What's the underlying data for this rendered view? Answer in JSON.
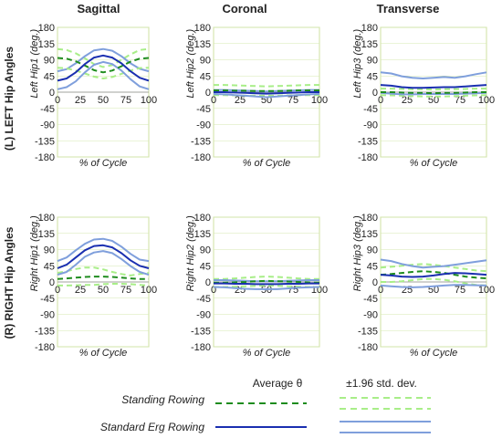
{
  "figure": {
    "column_titles": [
      "Sagittal",
      "Coronal",
      "Transverse"
    ],
    "row_titles": [
      "(L) LEFT Hip Angles",
      "(R) RIGHT Hip Angles"
    ]
  },
  "legend": {
    "average_header": "Average θ",
    "std_header": "±1.96 std. dev.",
    "entries": [
      {
        "label": "Standing Rowing",
        "series": "Standing Rowing"
      },
      {
        "label": "Standard Erg Rowing",
        "series": "Standard Erg Rowing"
      }
    ]
  },
  "colors": {
    "standing_mean": "#1e8c1e",
    "standing_band": "#a8ee88",
    "erg_mean": "#1a2fb0",
    "erg_band": "#7f9fdc",
    "plot_border": "#cfe0a0",
    "grid": "#d6e8b0"
  },
  "chart_data": [
    {
      "type": "line",
      "title": "Sagittal",
      "row": "(L) LEFT Hip Angles",
      "xlabel": "% of Cycle",
      "ylabel": "Left Hip1 (deg.)",
      "xlim": [
        0,
        100
      ],
      "ylim": [
        -180,
        180
      ],
      "xticks": [
        0,
        25,
        50,
        75,
        100
      ],
      "yticks": [
        180,
        135,
        90,
        45,
        0,
        -45,
        -90,
        -135,
        -180
      ],
      "x": [
        0,
        10,
        20,
        30,
        40,
        50,
        60,
        70,
        80,
        90,
        100
      ],
      "series": [
        {
          "name": "Standing Rowing",
          "kind": "mean",
          "values": [
            95,
            93,
            86,
            74,
            61,
            55,
            60,
            72,
            85,
            93,
            95
          ]
        },
        {
          "name": "Standing Rowing",
          "kind": "upper",
          "values": [
            120,
            117,
            108,
            94,
            78,
            70,
            75,
            90,
            105,
            117,
            120
          ]
        },
        {
          "name": "Standing Rowing",
          "kind": "lower",
          "values": [
            68,
            66,
            60,
            52,
            43,
            38,
            42,
            51,
            60,
            67,
            68
          ]
        },
        {
          "name": "Standard Erg Rowing",
          "kind": "mean",
          "values": [
            32,
            38,
            55,
            78,
            96,
            102,
            96,
            80,
            58,
            40,
            32
          ]
        },
        {
          "name": "Standard Erg Rowing",
          "kind": "upper",
          "values": [
            58,
            64,
            80,
            100,
            116,
            120,
            115,
            100,
            80,
            65,
            58
          ]
        },
        {
          "name": "Standard Erg Rowing",
          "kind": "lower",
          "values": [
            8,
            14,
            30,
            55,
            76,
            84,
            78,
            60,
            36,
            16,
            8
          ]
        }
      ]
    },
    {
      "type": "line",
      "title": "Coronal",
      "row": "(L) LEFT Hip Angles",
      "xlabel": "% of Cycle",
      "ylabel": "Left Hip2 (deg.)",
      "xlim": [
        0,
        100
      ],
      "ylim": [
        -180,
        180
      ],
      "xticks": [
        0,
        25,
        50,
        75,
        100
      ],
      "yticks": [
        180,
        135,
        90,
        45,
        0,
        -45,
        -90,
        -135,
        -180
      ],
      "x": [
        0,
        10,
        20,
        30,
        40,
        50,
        60,
        70,
        80,
        90,
        100
      ],
      "series": [
        {
          "name": "Standing Rowing",
          "kind": "mean",
          "values": [
            5,
            5,
            4,
            4,
            3,
            3,
            3,
            4,
            5,
            5,
            5
          ]
        },
        {
          "name": "Standing Rowing",
          "kind": "upper",
          "values": [
            20,
            20,
            19,
            18,
            17,
            16,
            17,
            18,
            19,
            20,
            20
          ]
        },
        {
          "name": "Standing Rowing",
          "kind": "lower",
          "values": [
            -8,
            -8,
            -9,
            -10,
            -10,
            -10,
            -10,
            -9,
            -8,
            -8,
            -8
          ]
        },
        {
          "name": "Standard Erg Rowing",
          "kind": "mean",
          "values": [
            0,
            0,
            -1,
            -2,
            -3,
            -4,
            -3,
            -2,
            -1,
            0,
            0
          ]
        },
        {
          "name": "Standard Erg Rowing",
          "kind": "upper",
          "values": [
            6,
            6,
            5,
            4,
            3,
            2,
            3,
            4,
            5,
            6,
            6
          ]
        },
        {
          "name": "Standard Erg Rowing",
          "kind": "lower",
          "values": [
            -5,
            -6,
            -8,
            -10,
            -12,
            -14,
            -12,
            -10,
            -8,
            -6,
            -5
          ]
        }
      ]
    },
    {
      "type": "line",
      "title": "Transverse",
      "row": "(L) LEFT Hip Angles",
      "xlabel": "% of Cycle",
      "ylabel": "Left Hip3 (deg.)",
      "xlim": [
        0,
        100
      ],
      "ylim": [
        -180,
        180
      ],
      "xticks": [
        0,
        25,
        50,
        75,
        100
      ],
      "yticks": [
        180,
        135,
        90,
        45,
        0,
        -45,
        -90,
        -135,
        -180
      ],
      "x": [
        0,
        10,
        20,
        30,
        40,
        50,
        60,
        70,
        80,
        90,
        100
      ],
      "series": [
        {
          "name": "Standing Rowing",
          "kind": "mean",
          "values": [
            0,
            0,
            -1,
            -2,
            -2,
            -3,
            -2,
            -2,
            -1,
            0,
            0
          ]
        },
        {
          "name": "Standing Rowing",
          "kind": "upper",
          "values": [
            10,
            10,
            9,
            8,
            8,
            7,
            8,
            8,
            9,
            10,
            10
          ]
        },
        {
          "name": "Standing Rowing",
          "kind": "lower",
          "values": [
            -8,
            -9,
            -10,
            -11,
            -12,
            -12,
            -12,
            -11,
            -10,
            -9,
            -8
          ]
        },
        {
          "name": "Standard Erg Rowing",
          "kind": "mean",
          "values": [
            20,
            18,
            14,
            12,
            12,
            13,
            14,
            14,
            16,
            18,
            20
          ]
        },
        {
          "name": "Standard Erg Rowing",
          "kind": "upper",
          "values": [
            55,
            52,
            44,
            40,
            38,
            40,
            42,
            40,
            44,
            50,
            55
          ]
        },
        {
          "name": "Standard Erg Rowing",
          "kind": "lower",
          "values": [
            -2,
            -4,
            -6,
            -6,
            -5,
            -5,
            -5,
            -5,
            -4,
            -3,
            -2
          ]
        }
      ]
    },
    {
      "type": "line",
      "title": "Sagittal",
      "row": "(R) RIGHT Hip Angles",
      "xlabel": "% of Cycle",
      "ylabel": "Right Hip1 (deg.)",
      "xlim": [
        0,
        100
      ],
      "ylim": [
        -180,
        180
      ],
      "xticks": [
        0,
        25,
        50,
        75,
        100
      ],
      "yticks": [
        180,
        135,
        90,
        45,
        0,
        -45,
        -90,
        -135,
        -180
      ],
      "x": [
        0,
        10,
        20,
        30,
        40,
        50,
        60,
        70,
        80,
        90,
        100
      ],
      "series": [
        {
          "name": "Standing Rowing",
          "kind": "mean",
          "values": [
            8,
            10,
            12,
            14,
            15,
            15,
            14,
            12,
            10,
            8,
            8
          ]
        },
        {
          "name": "Standing Rowing",
          "kind": "upper",
          "values": [
            25,
            30,
            36,
            40,
            40,
            35,
            28,
            22,
            18,
            22,
            25
          ]
        },
        {
          "name": "Standing Rowing",
          "kind": "lower",
          "values": [
            -10,
            -10,
            -9,
            -8,
            -8,
            -6,
            -5,
            -5,
            -6,
            -8,
            -10
          ]
        },
        {
          "name": "Standard Erg Rowing",
          "kind": "mean",
          "values": [
            38,
            48,
            68,
            88,
            100,
            102,
            96,
            80,
            60,
            45,
            38
          ]
        },
        {
          "name": "Standard Erg Rowing",
          "kind": "upper",
          "values": [
            58,
            68,
            88,
            106,
            118,
            120,
            114,
            98,
            78,
            62,
            58
          ]
        },
        {
          "name": "Standard Erg Rowing",
          "kind": "lower",
          "values": [
            20,
            28,
            48,
            70,
            82,
            86,
            80,
            64,
            44,
            28,
            20
          ]
        }
      ]
    },
    {
      "type": "line",
      "title": "Coronal",
      "row": "(R) RIGHT Hip Angles",
      "xlabel": "% of Cycle",
      "ylabel": "Right Hip2 (deg.)",
      "xlim": [
        0,
        100
      ],
      "ylim": [
        -180,
        180
      ],
      "xticks": [
        0,
        25,
        50,
        75,
        100
      ],
      "yticks": [
        180,
        135,
        90,
        45,
        0,
        -45,
        -90,
        -135,
        -180
      ],
      "x": [
        0,
        10,
        20,
        30,
        40,
        50,
        60,
        70,
        80,
        90,
        100
      ],
      "series": [
        {
          "name": "Standing Rowing",
          "kind": "mean",
          "values": [
            -2,
            -2,
            -1,
            0,
            2,
            3,
            2,
            1,
            0,
            -1,
            -2
          ]
        },
        {
          "name": "Standing Rowing",
          "kind": "upper",
          "values": [
            8,
            8,
            10,
            12,
            14,
            15,
            14,
            12,
            10,
            8,
            8
          ]
        },
        {
          "name": "Standing Rowing",
          "kind": "lower",
          "values": [
            -14,
            -14,
            -13,
            -12,
            -11,
            -10,
            -11,
            -12,
            -13,
            -14,
            -14
          ]
        },
        {
          "name": "Standard Erg Rowing",
          "kind": "mean",
          "values": [
            -4,
            -4,
            -5,
            -5,
            -6,
            -6,
            -6,
            -5,
            -5,
            -4,
            -4
          ]
        },
        {
          "name": "Standard Erg Rowing",
          "kind": "upper",
          "values": [
            5,
            5,
            4,
            3,
            2,
            2,
            2,
            3,
            4,
            5,
            5
          ]
        },
        {
          "name": "Standard Erg Rowing",
          "kind": "lower",
          "values": [
            -14,
            -15,
            -17,
            -19,
            -20,
            -20,
            -20,
            -18,
            -16,
            -15,
            -14
          ]
        }
      ]
    },
    {
      "type": "line",
      "title": "Transverse",
      "row": "(R) RIGHT Hip Angles",
      "xlabel": "% of Cycle",
      "ylabel": "Right Hip3 (deg.)",
      "xlim": [
        0,
        100
      ],
      "ylim": [
        -180,
        180
      ],
      "xticks": [
        0,
        25,
        50,
        75,
        100
      ],
      "yticks": [
        180,
        135,
        90,
        45,
        0,
        -45,
        -90,
        -135,
        -180
      ],
      "x": [
        0,
        10,
        20,
        30,
        40,
        50,
        60,
        70,
        80,
        90,
        100
      ],
      "series": [
        {
          "name": "Standing Rowing",
          "kind": "mean",
          "values": [
            20,
            22,
            25,
            28,
            30,
            28,
            25,
            20,
            15,
            12,
            10
          ]
        },
        {
          "name": "Standing Rowing",
          "kind": "upper",
          "values": [
            40,
            42,
            45,
            48,
            50,
            48,
            44,
            40,
            36,
            32,
            30
          ]
        },
        {
          "name": "Standing Rowing",
          "kind": "lower",
          "values": [
            0,
            0,
            2,
            5,
            8,
            8,
            6,
            2,
            -4,
            -8,
            -10
          ]
        },
        {
          "name": "Standard Erg Rowing",
          "kind": "mean",
          "values": [
            20,
            18,
            15,
            14,
            15,
            18,
            22,
            25,
            24,
            22,
            20
          ]
        },
        {
          "name": "Standard Erg Rowing",
          "kind": "upper",
          "values": [
            62,
            58,
            50,
            44,
            40,
            42,
            44,
            48,
            52,
            56,
            60
          ]
        },
        {
          "name": "Standard Erg Rowing",
          "kind": "lower",
          "values": [
            -10,
            -12,
            -14,
            -15,
            -14,
            -12,
            -10,
            -8,
            -8,
            -9,
            -10
          ]
        }
      ]
    }
  ]
}
